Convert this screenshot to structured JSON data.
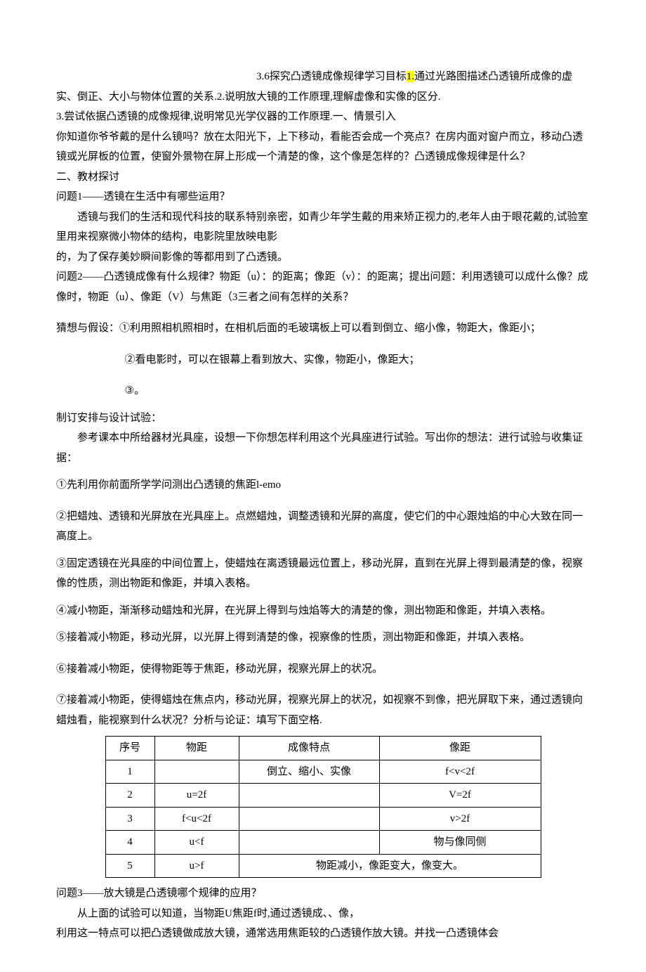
{
  "doc": {
    "line1_a": "3.6探究凸透镜成像规律学习目标",
    "line1_hl": "1.",
    "line1_b": "通过光路图描述凸透镜所成像的虚",
    "line2": "实、倒正、大小与物体位置的关系.2.说明放大镜的工作原理,理解虚像和实像的区分.",
    "line3": "3.尝试依据凸透镜的成像规律,说明常见光学仪器的工作原理.一、情景引入",
    "p1a": "你知道你爷爷戴的是什么镜吗？放在太阳光下，上下移动，看能否会成一个亮点？在房内面对窗户而立，移动凸透镜或光屏板的位置，使窗外景物在屏上形成一个清楚的像，这个像是怎样的？凸透镜成像规律是什么？",
    "s2": "二、教材探讨",
    "q1": "问题1——透镜在生活中有哪些运用？",
    "q1_p1": "透镜与我们的生活和现代科技的联系特别亲密，如青少年学生戴的用来矫正视力的,老年人由于眼花戴的,试验室里用来视察微小物体的结构，电影院里放映电影",
    "q1_p2": "的，为了保存美妙瞬间影像的等都用到了凸透镜。",
    "q2": "问题2——凸透镜成像有什么规律？物距（u）：的距离；像距（v）：的距离；提出问题：利用透镜可以成什么像？成像时，物距（u）、像距（V）与焦距（3三者之间有怎样的关系？",
    "guess_label": "猜想与假设：①利用照相机照相时，在相机后面的毛玻璃板上可以看到倒立、缩小像，物距大，像距小；",
    "guess2": "②看电影时，可以在银幕上看到放大、实像，物距小，像距大；",
    "guess3": "③。",
    "plan": "制订安排与设计试验：",
    "plan_p": "参考课本中所给器材光具座，设想一下你想怎样利用这个光具座进行试验。写出你的想法：进行试验与收集证据：",
    "step1": "①先利用你前面所学学问测出凸透镜的焦距l-emo",
    "step2": "②把蜡烛、透镜和光屏放在光具座上。点燃蜡烛，调整透镜和光屏的高度，使它们的中心跟烛焰的中心大致在同一高度上。",
    "step3": "③固定透镜在光具座的中间位置上，使蜡烛在离透镜最远位置上，移动光屏，直到在光屏上得到最清楚的像，视察像的性质，测出物距和像距，并填入表格。",
    "step4": "④减小物距，渐渐移动蜡烛和光屏，在光屏上得到与烛焰等大的清楚的像，测出物距和像距，并填入表格。",
    "step5": "⑤接着减小物距，移动光屏，以光屏上得到清楚的像，视察像的性质，测出物距和像距，并填入表格。",
    "step6": "⑥接着减小物距，使得物距等于焦距，移动光屏，视察光屏上的状况。",
    "step7": "⑦接着减小物距，使得蜡烛在焦点内，移动光屏，视察光屏上的状况，如视察不到像，把光屏取下来，通过透镜向蜡烛看，能视察到什么状况？分析与论证：填写下面空格.",
    "q3": "问题3——放大镜是凸透镜哪个规律的应用？",
    "q3_p1": "从上面的试验可以知道，当物距U焦距f时,通过透镜成、、像，",
    "q3_p2": "利用这一特点可以把凸透镜做成放大镜，通常选用焦距较的凸透镜作放大镜。并找一凸透镜体会"
  },
  "table": {
    "headers": [
      "序号",
      "物距",
      "成像特点",
      "像距"
    ],
    "rows": [
      [
        "1",
        "",
        "倒立、缩小、实像",
        "f<v<2f"
      ],
      [
        "2",
        "u=2f",
        "",
        "V=2f"
      ],
      [
        "3",
        "f<u<2f",
        "",
        "v>2f"
      ],
      [
        "4",
        "u<f",
        "",
        "物与像同侧"
      ],
      [
        "5",
        "u>f",
        "物距减小，像距变大，像变大。",
        ""
      ]
    ],
    "row5_colspan": true
  }
}
